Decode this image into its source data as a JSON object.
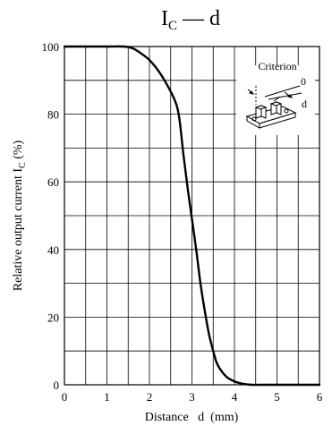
{
  "chart_data": {
    "type": "line",
    "title": {
      "main": "I",
      "sub": "C",
      "rest": " — d"
    },
    "xlabel": "Distance   d  (mm)",
    "ylabel": {
      "pre": "Relative output current    I",
      "sub": "C",
      "post": "  (%)"
    },
    "xlim": [
      0,
      6
    ],
    "ylim": [
      0,
      100
    ],
    "x_ticks": [
      "0",
      "1",
      "2",
      "3",
      "4",
      "5",
      "6"
    ],
    "y_ticks": [
      "0",
      "20",
      "40",
      "60",
      "80",
      "100"
    ],
    "grid": true,
    "series": [
      {
        "x": [
          0,
          0.5,
          1.0,
          1.4,
          1.6,
          1.8,
          2.0,
          2.2,
          2.4,
          2.6,
          2.7,
          2.8,
          2.9,
          3.0,
          3.1,
          3.2,
          3.3,
          3.4,
          3.5,
          3.6,
          3.8,
          4.0,
          4.2,
          4.4,
          4.6,
          5.0,
          6.0
        ],
        "y": [
          100,
          100,
          100,
          100,
          99.5,
          98,
          96,
          93,
          89,
          84,
          79,
          68,
          58,
          49,
          40,
          30,
          22,
          15,
          10,
          6,
          2.5,
          1,
          0.3,
          0,
          0,
          0,
          0
        ]
      }
    ],
    "inset": {
      "criterion_label": "Criterion",
      "zero_label": "0",
      "d_label": "d"
    }
  }
}
